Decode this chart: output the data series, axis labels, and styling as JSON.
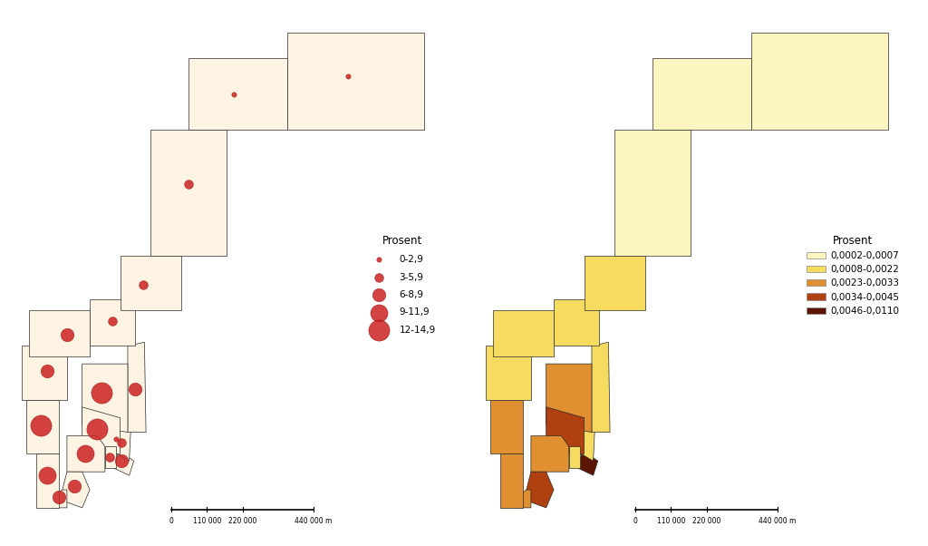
{
  "background_color": "#ffffff",
  "map_face_color": "#fdf3e3",
  "map_edge_color": "#2a2a2a",
  "map_edge_width": 0.5,
  "left_dot_color": "#cc2222",
  "left_dot_edgecolor": "#8b0000",
  "left_legend_title": "Prosent",
  "left_legend_entries": [
    "0-2,9",
    "3-5,9",
    "6-8,9",
    "9-11,9",
    "12-14,9"
  ],
  "left_legend_sizes": [
    15,
    50,
    110,
    190,
    280
  ],
  "right_legend_title": "Prosent",
  "right_legend_entries": [
    "0,0002-0,0007",
    "0,0008-0,0022",
    "0,0023-0,0033",
    "0,0034-0,0045",
    "0,0046-0,0110"
  ],
  "right_legend_colors": [
    "#fdf5c0",
    "#f5dc60",
    "#e09030",
    "#b04010",
    "#5c1505"
  ],
  "scale_labels": [
    "0",
    "110 000",
    "220 000",
    "440 000 m"
  ],
  "county_values": {
    "Finnmark": 1.5,
    "Troms": 2.0,
    "Nordland": 3.5,
    "Nord-Trondelag": 4.5,
    "Sor-Trondelag": 4.8,
    "More og Romsdal": 6.5,
    "Sogn og Fjordane": 7.5,
    "Hordaland": 13.5,
    "Rogaland": 9.5,
    "Vest-Agder": 8.0,
    "Aust-Agder": 7.5,
    "Telemark": 10.5,
    "Vestfold": 5.5,
    "Buskerud": 13.0,
    "Oppland": 14.0,
    "Hedmark": 8.0,
    "Akershus": 4.0,
    "Oslo": 1.0,
    "Ostfold": 6.0
  },
  "county_right_cat": {
    "Finnmark": 0,
    "Troms": 0,
    "Nordland": 0,
    "Nord-Trondelag": 1,
    "Sor-Trondelag": 1,
    "More og Romsdal": 1,
    "Sogn og Fjordane": 1,
    "Hordaland": 2,
    "Rogaland": 2,
    "Vest-Agder": 2,
    "Aust-Agder": 3,
    "Telemark": 2,
    "Vestfold": 1,
    "Buskerud": 3,
    "Oppland": 2,
    "Hedmark": 1,
    "Akershus": 1,
    "Oslo": 4,
    "Ostfold": 4
  }
}
